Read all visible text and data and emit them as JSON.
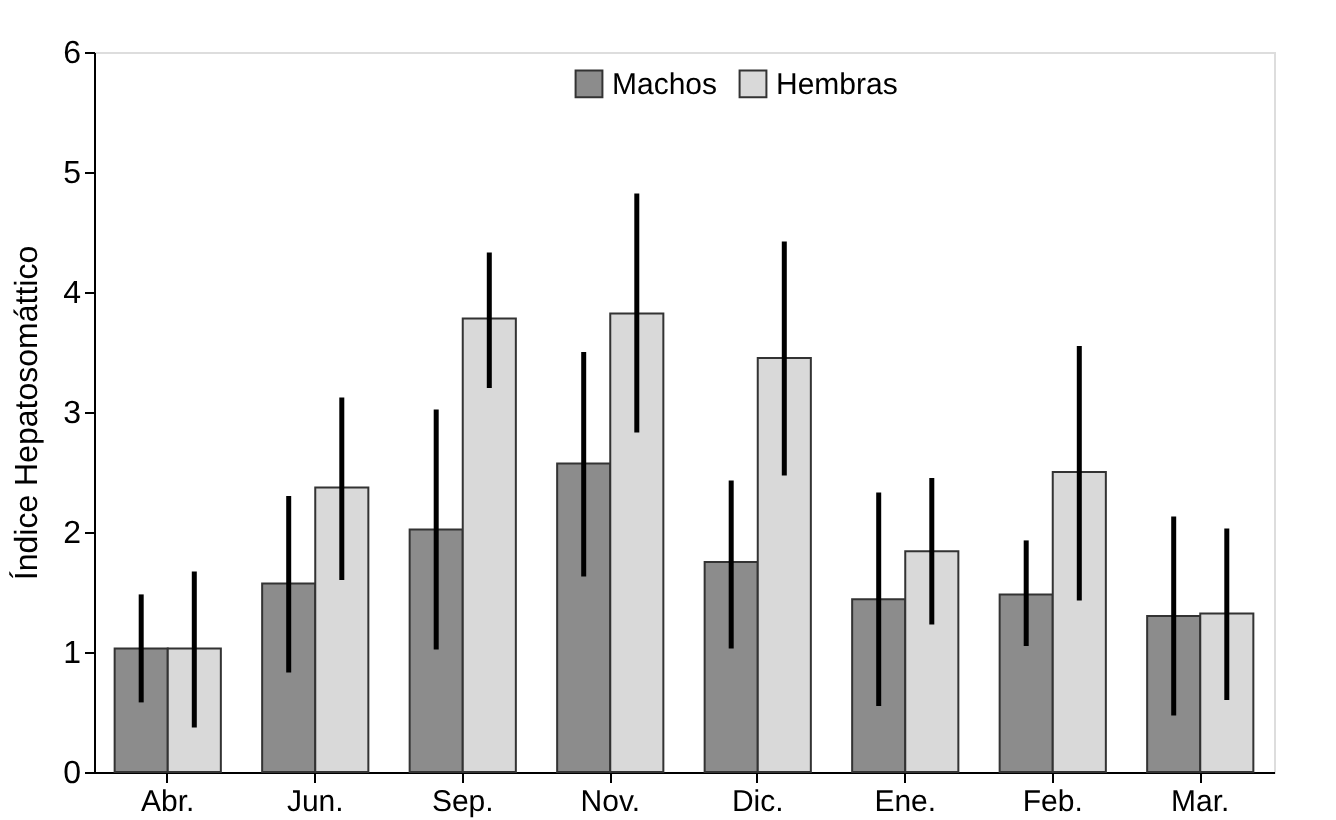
{
  "chart_data": {
    "type": "bar",
    "ylabel": "Índice Hepatosomáttico",
    "categories": [
      "Abr.",
      "Jun.",
      "Sep.",
      "Nov.",
      "Dic.",
      "Ene.",
      "Feb.",
      "Mar."
    ],
    "series": [
      {
        "name": "Machos",
        "color": "#8c8c8c",
        "values": [
          1.03,
          1.57,
          2.02,
          2.57,
          1.75,
          1.44,
          1.48,
          1.3
        ],
        "errors": [
          [
            0.58,
            1.48
          ],
          [
            0.83,
            2.3
          ],
          [
            1.02,
            3.02
          ],
          [
            1.63,
            3.5
          ],
          [
            1.03,
            2.43
          ],
          [
            0.55,
            2.33
          ],
          [
            1.05,
            1.93
          ],
          [
            0.47,
            2.13
          ]
        ]
      },
      {
        "name": "Hembras",
        "color": "#d9d9d9",
        "values": [
          1.03,
          2.37,
          3.78,
          3.82,
          3.45,
          1.84,
          2.5,
          1.32
        ],
        "errors": [
          [
            0.37,
            1.67
          ],
          [
            1.6,
            3.12
          ],
          [
            3.2,
            4.33
          ],
          [
            2.83,
            4.82
          ],
          [
            2.47,
            4.42
          ],
          [
            1.23,
            2.45
          ],
          [
            1.43,
            3.55
          ],
          [
            0.6,
            2.03
          ]
        ]
      }
    ],
    "ylim": [
      0,
      6
    ],
    "yticks": [
      0,
      1,
      2,
      3,
      4,
      5,
      6
    ],
    "grid": false,
    "legend": "top"
  }
}
